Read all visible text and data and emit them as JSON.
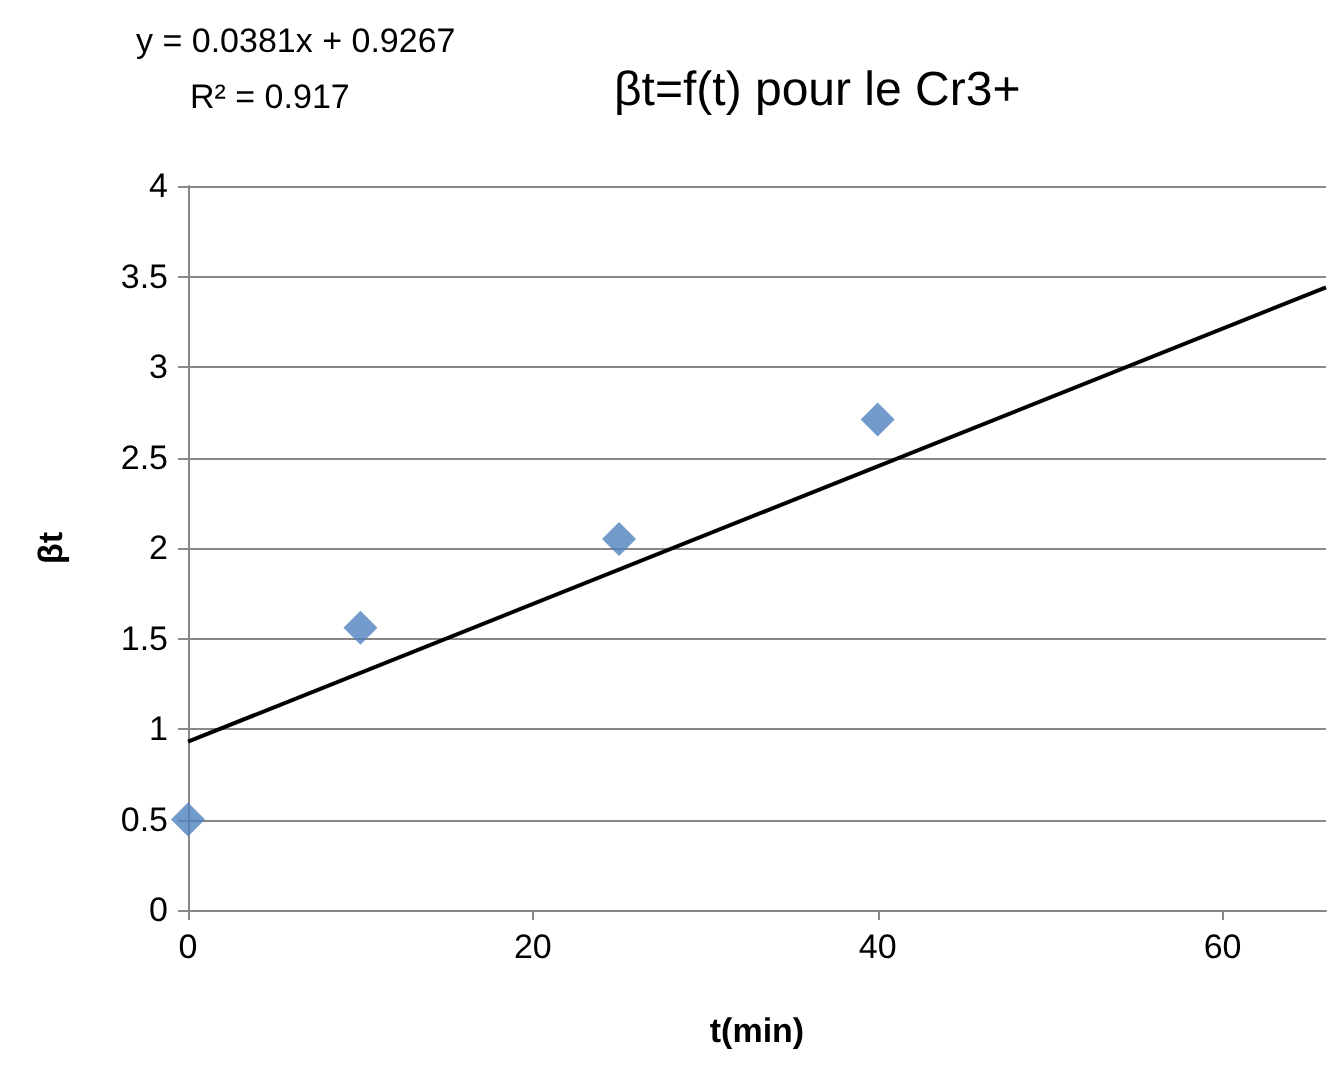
{
  "chart_data": {
    "type": "scatter",
    "title": "βt=f(t) pour le Cr3+",
    "xlabel": "t(min)",
    "ylabel": "βt",
    "annotations": [
      "y = 0.0381x + 0.9267",
      "R² = 0.917"
    ],
    "series": [
      {
        "color": "#4f81bd",
        "x": [
          0,
          10,
          25,
          40
        ],
        "values": [
          0.5,
          1.56,
          2.05,
          2.71
        ],
        "marker": "diamond"
      },
      {
        "type": "line",
        "color": "#000000",
        "x": [
          0,
          66
        ],
        "values": [
          0.93,
          3.44
        ],
        "marker": "none",
        "line_style": "solid"
      }
    ],
    "xlim": [
      0,
      66
    ],
    "xticks": [
      0,
      20,
      40,
      60
    ],
    "ylim": [
      0,
      4
    ],
    "yticks": [
      0,
      0.5,
      1,
      1.5,
      2,
      2.5,
      3,
      3.5,
      4
    ],
    "grid": "y"
  }
}
